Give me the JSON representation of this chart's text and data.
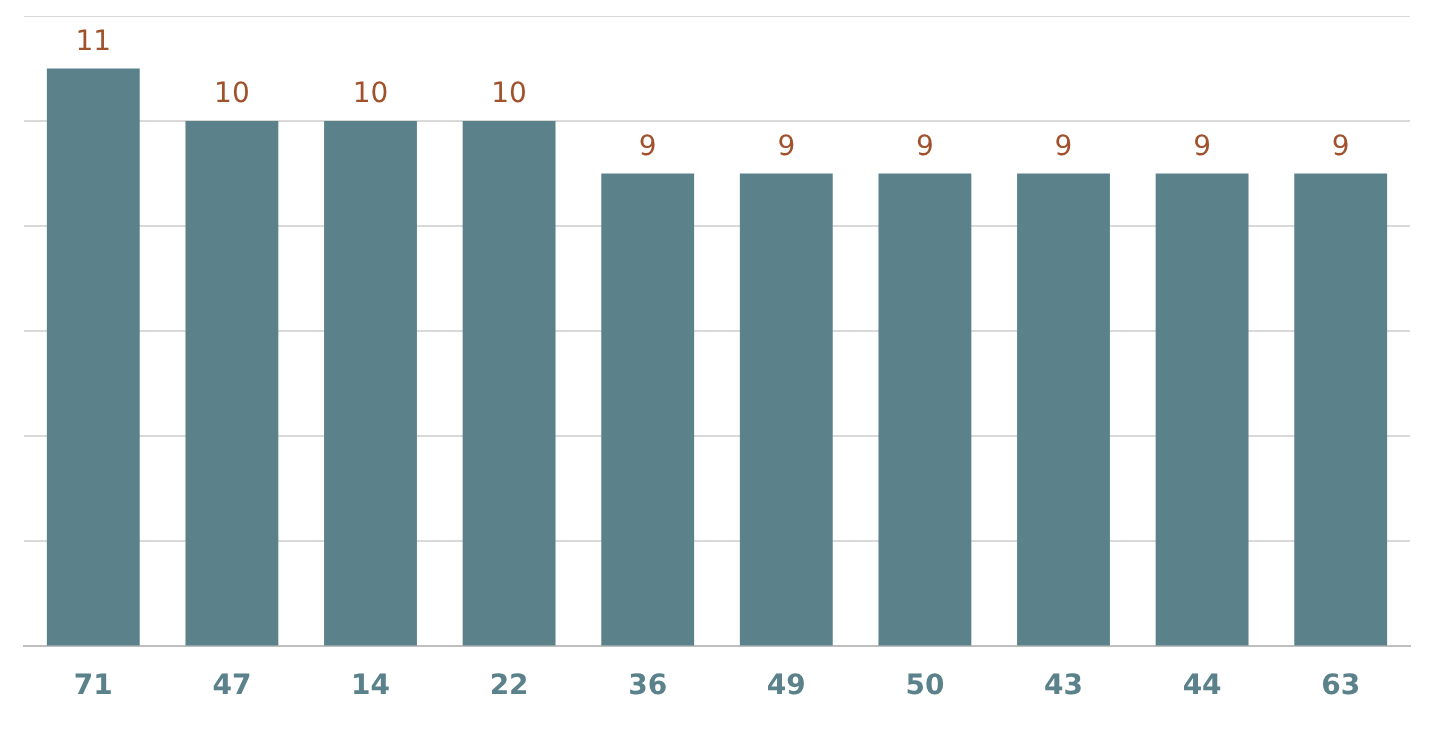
{
  "chart_data": {
    "type": "bar",
    "categories": [
      "71",
      "47",
      "14",
      "22",
      "36",
      "49",
      "50",
      "43",
      "44",
      "63"
    ],
    "values": [
      11,
      10,
      10,
      10,
      9,
      9,
      9,
      9,
      9,
      9
    ],
    "color": "#5b828b",
    "data_labels": true,
    "ylim": [
      0,
      12
    ],
    "yticks": [
      {
        "value": 0,
        "label": null
      },
      {
        "value": 2,
        "label": null
      },
      {
        "value": 4,
        "label": null
      },
      {
        "value": 6,
        "label": null
      },
      {
        "value": 8,
        "label": null
      },
      {
        "value": 10,
        "label": null
      },
      {
        "value": 12,
        "label": null
      }
    ],
    "grid": "y",
    "tick_labels": "x",
    "legend": false
  }
}
